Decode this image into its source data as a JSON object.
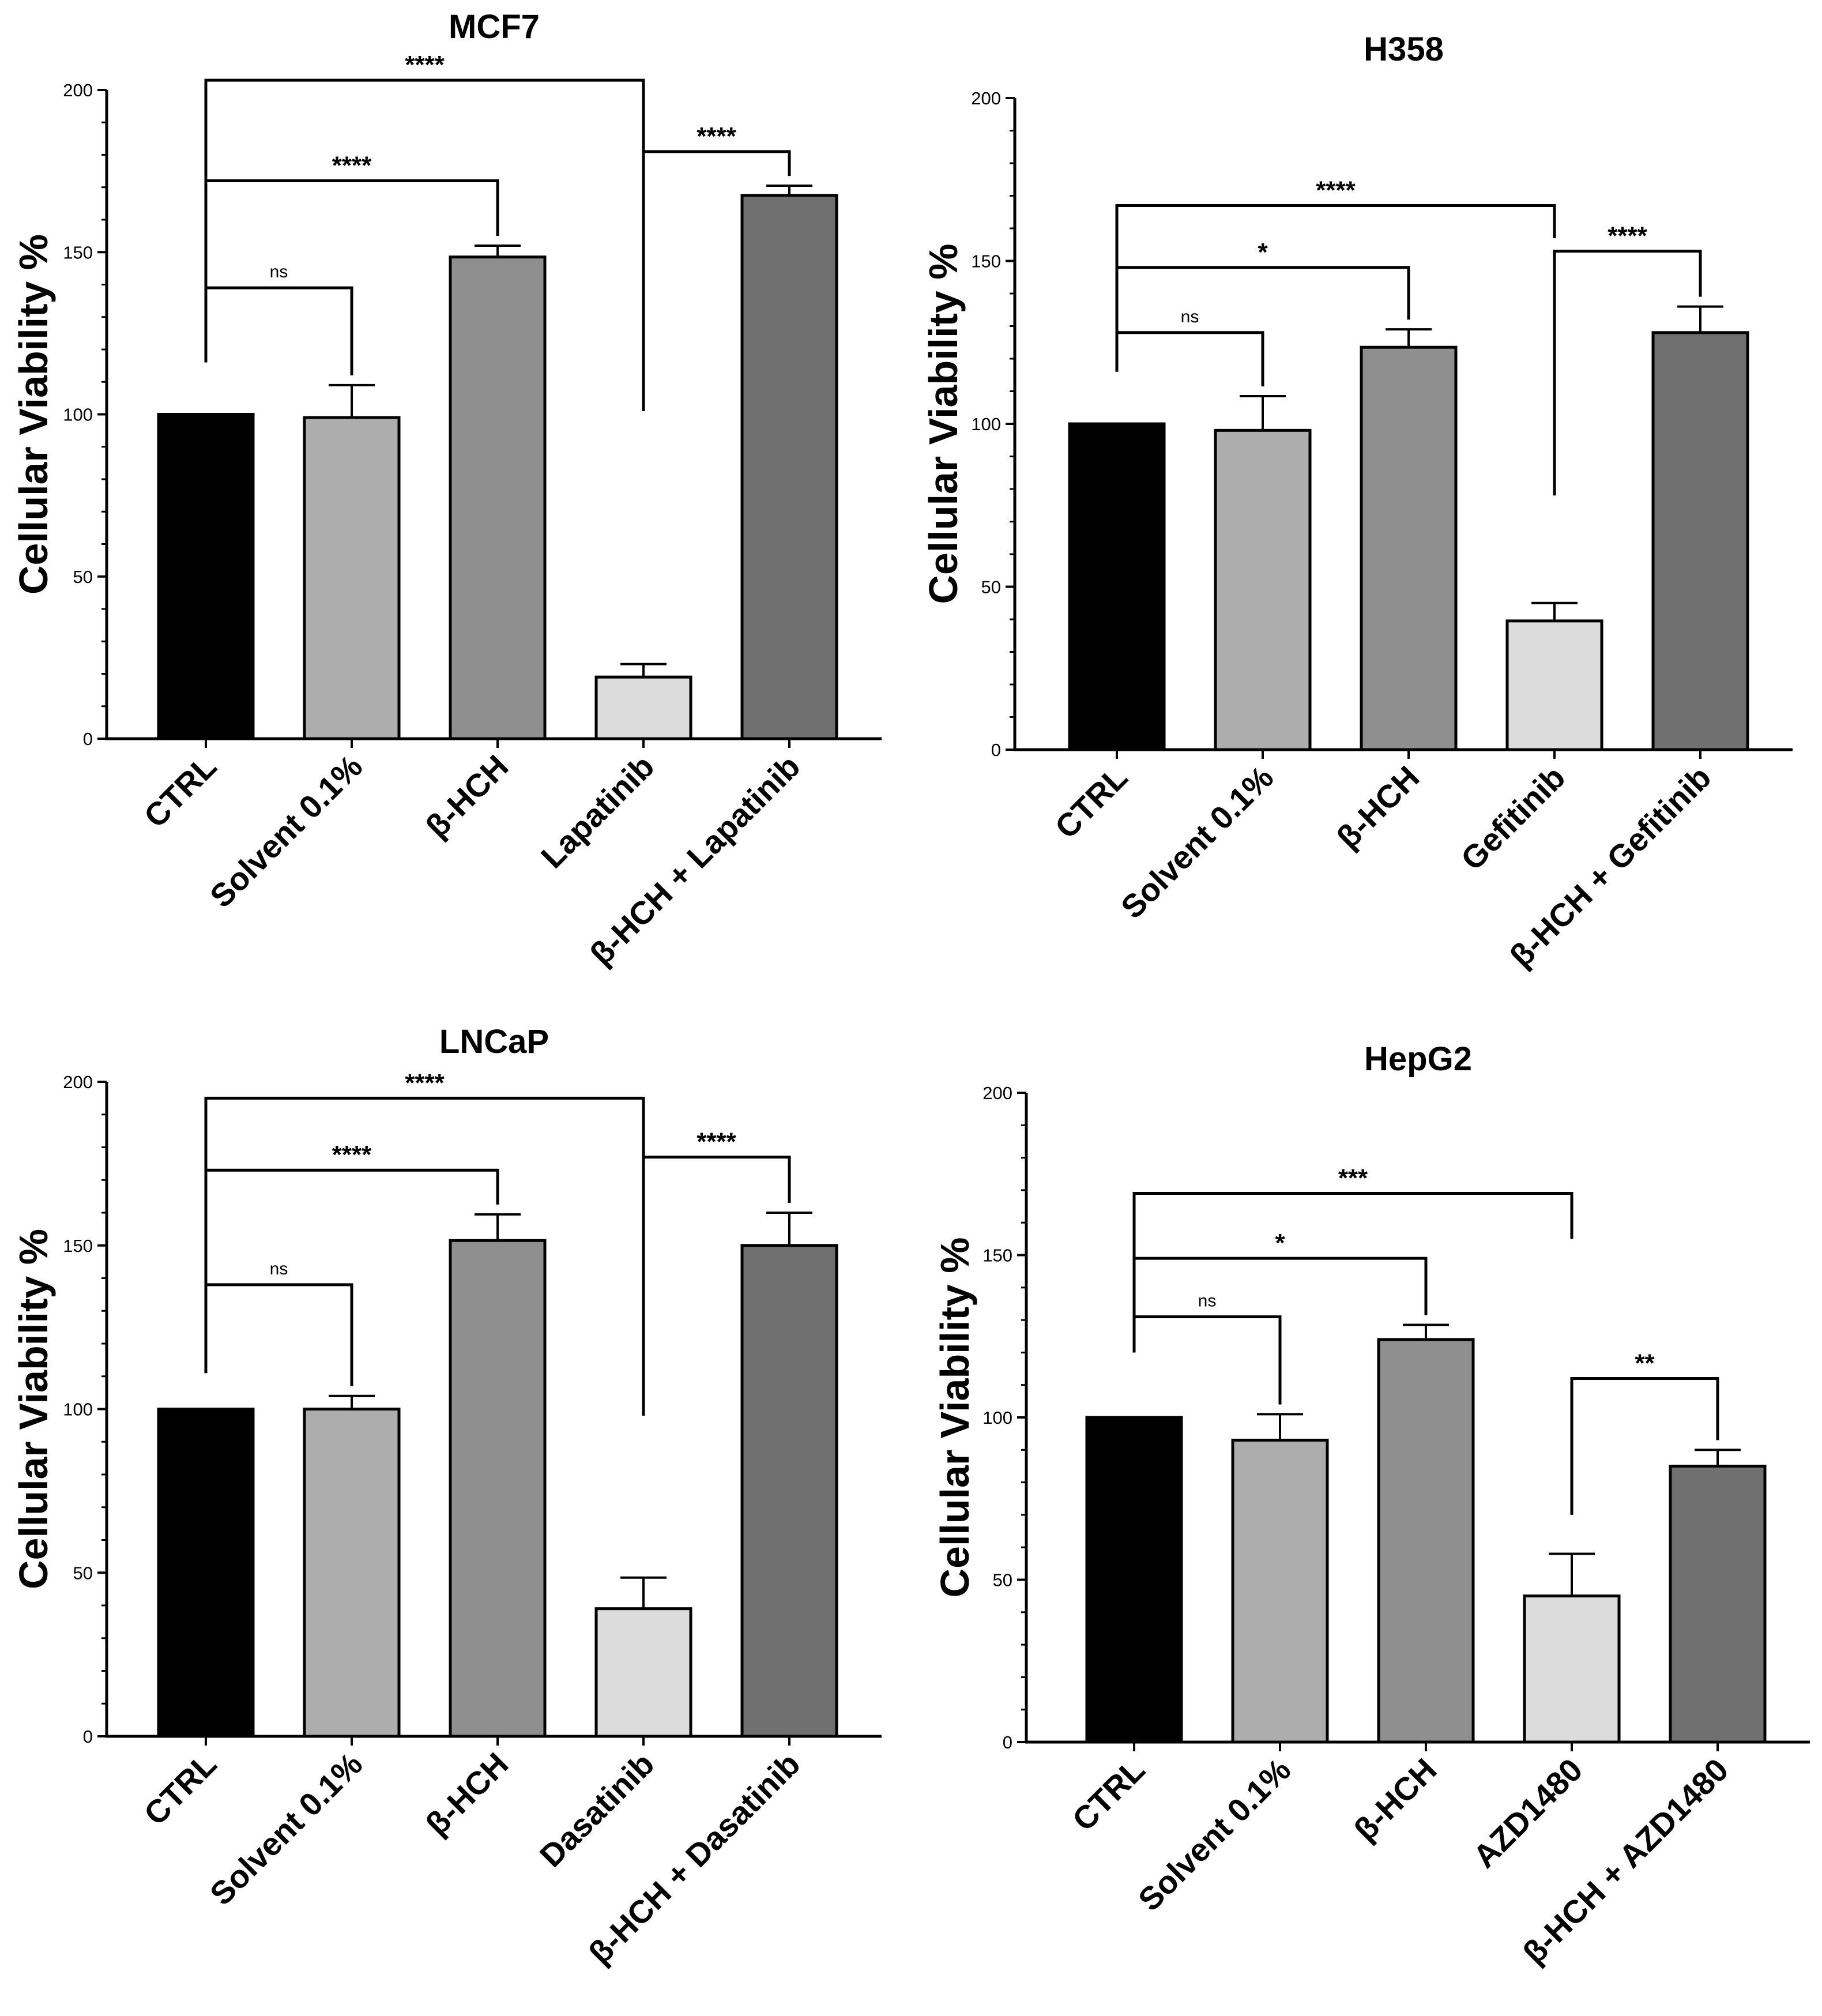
{
  "figure": "Cellular viability bar charts",
  "chart_data": [
    {
      "type": "bar",
      "title": "MCF7",
      "ylabel": "Cellular Viability %",
      "xlabel": "",
      "ylim": [
        0,
        200
      ],
      "yticks": [
        0,
        50,
        100,
        150,
        200
      ],
      "categories": [
        "CTRL",
        "Solvent 0.1%",
        "β-HCH",
        "Lapatinib",
        "β-HCH + Lapatinib"
      ],
      "values": [
        100,
        99,
        148.5,
        19,
        167.5
      ],
      "errors": [
        0,
        10,
        3.5,
        4,
        3
      ],
      "colors": [
        "#000000",
        "#adadad",
        "#8f8f8f",
        "#dcdcdc",
        "#707070"
      ],
      "significance": [
        {
          "from": 0,
          "to": 1,
          "label": "ns",
          "level": 139,
          "lstart": 116
        },
        {
          "from": 0,
          "to": 2,
          "label": "****",
          "level": 172,
          "lstart": 116
        },
        {
          "from": 0,
          "to": 3,
          "label": "****",
          "level": 203,
          "lstart": 116,
          "lend": 101
        },
        {
          "from": 3,
          "to": 4,
          "label": "****",
          "level": 181,
          "lstart": 101
        }
      ]
    },
    {
      "type": "bar",
      "title": "H358",
      "ylabel": "Cellular Viability %",
      "xlabel": "",
      "ylim": [
        0,
        200
      ],
      "yticks": [
        0,
        50,
        100,
        150,
        200
      ],
      "categories": [
        "CTRL",
        "Solvent 0.1%",
        "β-HCH",
        "Gefitinib",
        "β-HCH + Gefitinib"
      ],
      "values": [
        100,
        98,
        123.5,
        39.5,
        128
      ],
      "errors": [
        0,
        10.5,
        5.5,
        5.5,
        8
      ],
      "colors": [
        "#000000",
        "#adadad",
        "#8f8f8f",
        "#dcdcdc",
        "#707070"
      ],
      "significance": [
        {
          "from": 0,
          "to": 1,
          "label": "ns",
          "level": 128,
          "lstart": 116
        },
        {
          "from": 0,
          "to": 2,
          "label": "*",
          "level": 148,
          "lstart": 116
        },
        {
          "from": 0,
          "to": 3,
          "label": "****",
          "level": 167,
          "lstart": 116,
          "lend": 157
        },
        {
          "from": 3,
          "to": 4,
          "label": "****",
          "level": 153,
          "lstart": 78
        }
      ]
    },
    {
      "type": "bar",
      "title": "LNCaP",
      "ylabel": "Cellular Viability %",
      "xlabel": "",
      "ylim": [
        0,
        200
      ],
      "yticks": [
        0,
        50,
        100,
        150,
        200
      ],
      "categories": [
        "CTRL",
        "Solvent 0.1%",
        "β-HCH",
        "Dasatinib",
        "β-HCH + Dasatinib"
      ],
      "values": [
        100,
        100,
        151.5,
        39,
        150
      ],
      "errors": [
        0,
        4,
        8,
        9.5,
        10
      ],
      "colors": [
        "#000000",
        "#adadad",
        "#8f8f8f",
        "#dcdcdc",
        "#707070"
      ],
      "significance": [
        {
          "from": 0,
          "to": 1,
          "label": "ns",
          "level": 138,
          "lstart": 111
        },
        {
          "from": 0,
          "to": 2,
          "label": "****",
          "level": 173,
          "lstart": 111
        },
        {
          "from": 0,
          "to": 3,
          "label": "****",
          "level": 195,
          "lstart": 111,
          "lend": 98
        },
        {
          "from": 3,
          "to": 4,
          "label": "****",
          "level": 177,
          "lstart": 98
        }
      ]
    },
    {
      "type": "bar",
      "title": "HepG2",
      "ylabel": "Cellular Viability %",
      "xlabel": "",
      "ylim": [
        0,
        200
      ],
      "yticks": [
        0,
        50,
        100,
        150,
        200
      ],
      "categories": [
        "CTRL",
        "Solvent 0.1%",
        "β-HCH",
        "AZD1480",
        "β-HCH + AZD1480"
      ],
      "values": [
        100,
        93,
        124,
        45,
        85
      ],
      "errors": [
        0,
        8,
        4.5,
        13,
        5
      ],
      "colors": [
        "#000000",
        "#adadad",
        "#8f8f8f",
        "#dcdcdc",
        "#707070"
      ],
      "significance": [
        {
          "from": 0,
          "to": 1,
          "label": "ns",
          "level": 131,
          "lstart": 120
        },
        {
          "from": 0,
          "to": 2,
          "label": "*",
          "level": 149,
          "lstart": 120
        },
        {
          "from": 0,
          "to": 3,
          "label": "***",
          "level": 169,
          "lstart": 120,
          "lend": 155
        },
        {
          "from": 3,
          "to": 4,
          "label": "**",
          "level": 112,
          "lstart": 70
        }
      ]
    }
  ]
}
